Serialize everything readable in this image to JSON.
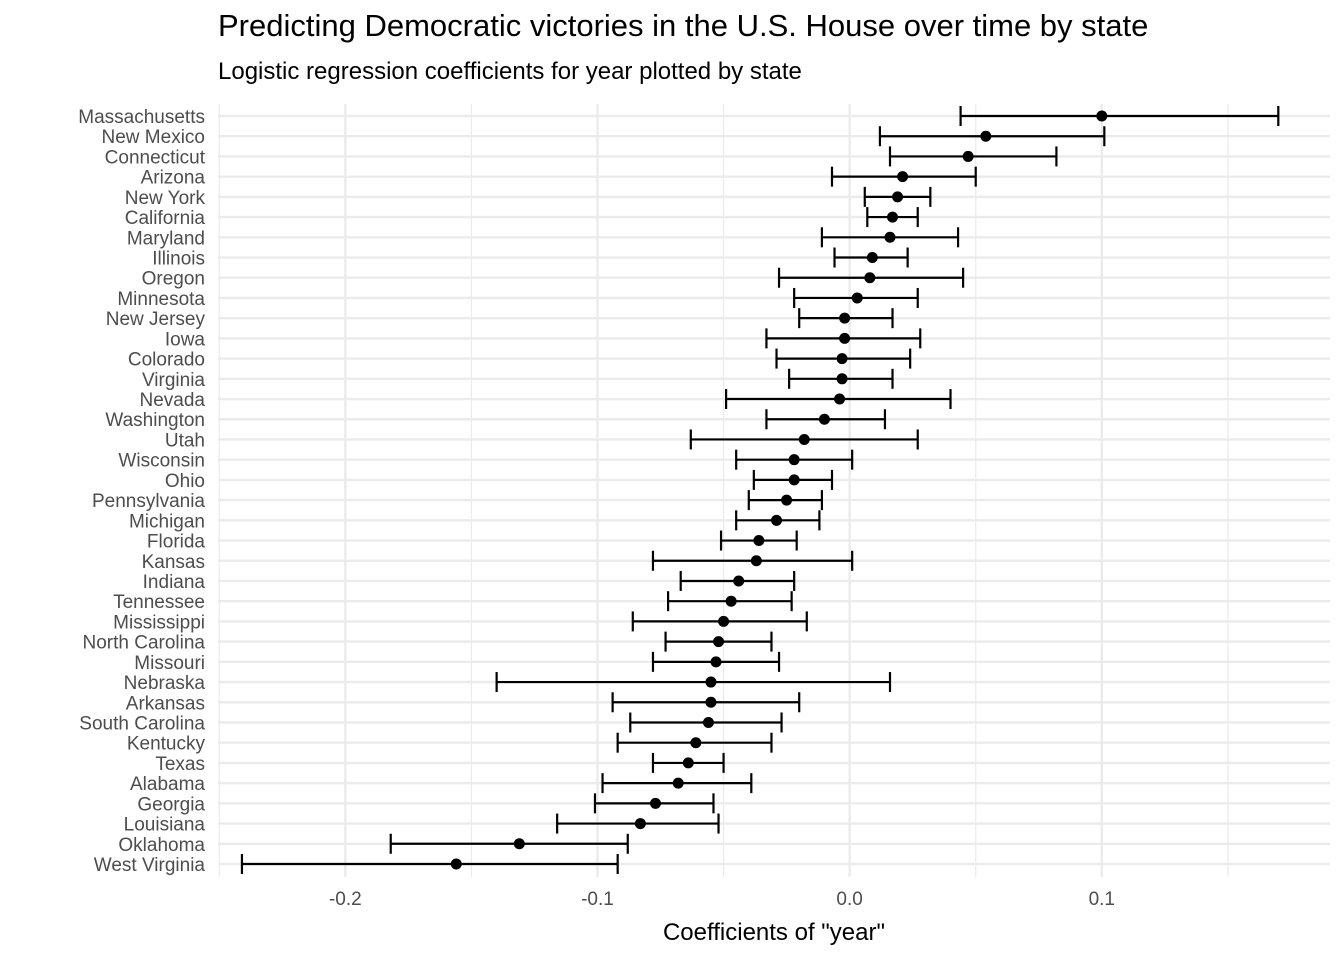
{
  "chart_data": {
    "type": "scatter",
    "title": "Predicting Democratic victories in the U.S. House over time by state",
    "subtitle": "Logistic regression coefficients for year plotted by state",
    "xlabel": "Coefficients of \"year\"",
    "ylabel": "",
    "xlim": [
      -0.2505,
      0.1905
    ],
    "x_ticks": [
      -0.2,
      -0.1,
      0.0,
      0.1
    ],
    "x_tick_labels": [
      "-0.2",
      "-0.1",
      "0.0",
      "0.1"
    ],
    "grid": true,
    "legend": "none",
    "point_color": "#000000",
    "grid_color": "#ebebeb",
    "points": [
      {
        "state": "Massachusetts",
        "estimate": 0.1,
        "lower": 0.044,
        "upper": 0.17
      },
      {
        "state": "New Mexico",
        "estimate": 0.054,
        "lower": 0.012,
        "upper": 0.101
      },
      {
        "state": "Connecticut",
        "estimate": 0.047,
        "lower": 0.016,
        "upper": 0.082
      },
      {
        "state": "Arizona",
        "estimate": 0.021,
        "lower": -0.007,
        "upper": 0.05
      },
      {
        "state": "New York",
        "estimate": 0.019,
        "lower": 0.006,
        "upper": 0.032
      },
      {
        "state": "California",
        "estimate": 0.017,
        "lower": 0.007,
        "upper": 0.027
      },
      {
        "state": "Maryland",
        "estimate": 0.016,
        "lower": -0.011,
        "upper": 0.043
      },
      {
        "state": "Illinois",
        "estimate": 0.009,
        "lower": -0.006,
        "upper": 0.023
      },
      {
        "state": "Oregon",
        "estimate": 0.008,
        "lower": -0.028,
        "upper": 0.045
      },
      {
        "state": "Minnesota",
        "estimate": 0.003,
        "lower": -0.022,
        "upper": 0.027
      },
      {
        "state": "New Jersey",
        "estimate": -0.002,
        "lower": -0.02,
        "upper": 0.017
      },
      {
        "state": "Iowa",
        "estimate": -0.002,
        "lower": -0.033,
        "upper": 0.028
      },
      {
        "state": "Colorado",
        "estimate": -0.003,
        "lower": -0.029,
        "upper": 0.024
      },
      {
        "state": "Virginia",
        "estimate": -0.003,
        "lower": -0.024,
        "upper": 0.017
      },
      {
        "state": "Nevada",
        "estimate": -0.004,
        "lower": -0.049,
        "upper": 0.04
      },
      {
        "state": "Washington",
        "estimate": -0.01,
        "lower": -0.033,
        "upper": 0.014
      },
      {
        "state": "Utah",
        "estimate": -0.018,
        "lower": -0.063,
        "upper": 0.027
      },
      {
        "state": "Wisconsin",
        "estimate": -0.022,
        "lower": -0.045,
        "upper": 0.001
      },
      {
        "state": "Ohio",
        "estimate": -0.022,
        "lower": -0.038,
        "upper": -0.007
      },
      {
        "state": "Pennsylvania",
        "estimate": -0.025,
        "lower": -0.04,
        "upper": -0.011
      },
      {
        "state": "Michigan",
        "estimate": -0.029,
        "lower": -0.045,
        "upper": -0.012
      },
      {
        "state": "Florida",
        "estimate": -0.036,
        "lower": -0.051,
        "upper": -0.021
      },
      {
        "state": "Kansas",
        "estimate": -0.037,
        "lower": -0.078,
        "upper": 0.001
      },
      {
        "state": "Indiana",
        "estimate": -0.044,
        "lower": -0.067,
        "upper": -0.022
      },
      {
        "state": "Tennessee",
        "estimate": -0.047,
        "lower": -0.072,
        "upper": -0.023
      },
      {
        "state": "Mississippi",
        "estimate": -0.05,
        "lower": -0.086,
        "upper": -0.017
      },
      {
        "state": "North Carolina",
        "estimate": -0.052,
        "lower": -0.073,
        "upper": -0.031
      },
      {
        "state": "Missouri",
        "estimate": -0.053,
        "lower": -0.078,
        "upper": -0.028
      },
      {
        "state": "Nebraska",
        "estimate": -0.055,
        "lower": -0.14,
        "upper": 0.016
      },
      {
        "state": "Arkansas",
        "estimate": -0.055,
        "lower": -0.094,
        "upper": -0.02
      },
      {
        "state": "South Carolina",
        "estimate": -0.056,
        "lower": -0.087,
        "upper": -0.027
      },
      {
        "state": "Kentucky",
        "estimate": -0.061,
        "lower": -0.092,
        "upper": -0.031
      },
      {
        "state": "Texas",
        "estimate": -0.064,
        "lower": -0.078,
        "upper": -0.05
      },
      {
        "state": "Alabama",
        "estimate": -0.068,
        "lower": -0.098,
        "upper": -0.039
      },
      {
        "state": "Georgia",
        "estimate": -0.077,
        "lower": -0.101,
        "upper": -0.054
      },
      {
        "state": "Louisiana",
        "estimate": -0.083,
        "lower": -0.116,
        "upper": -0.052
      },
      {
        "state": "Oklahoma",
        "estimate": -0.131,
        "lower": -0.182,
        "upper": -0.088
      },
      {
        "state": "West Virginia",
        "estimate": -0.156,
        "lower": -0.241,
        "upper": -0.092
      }
    ]
  }
}
